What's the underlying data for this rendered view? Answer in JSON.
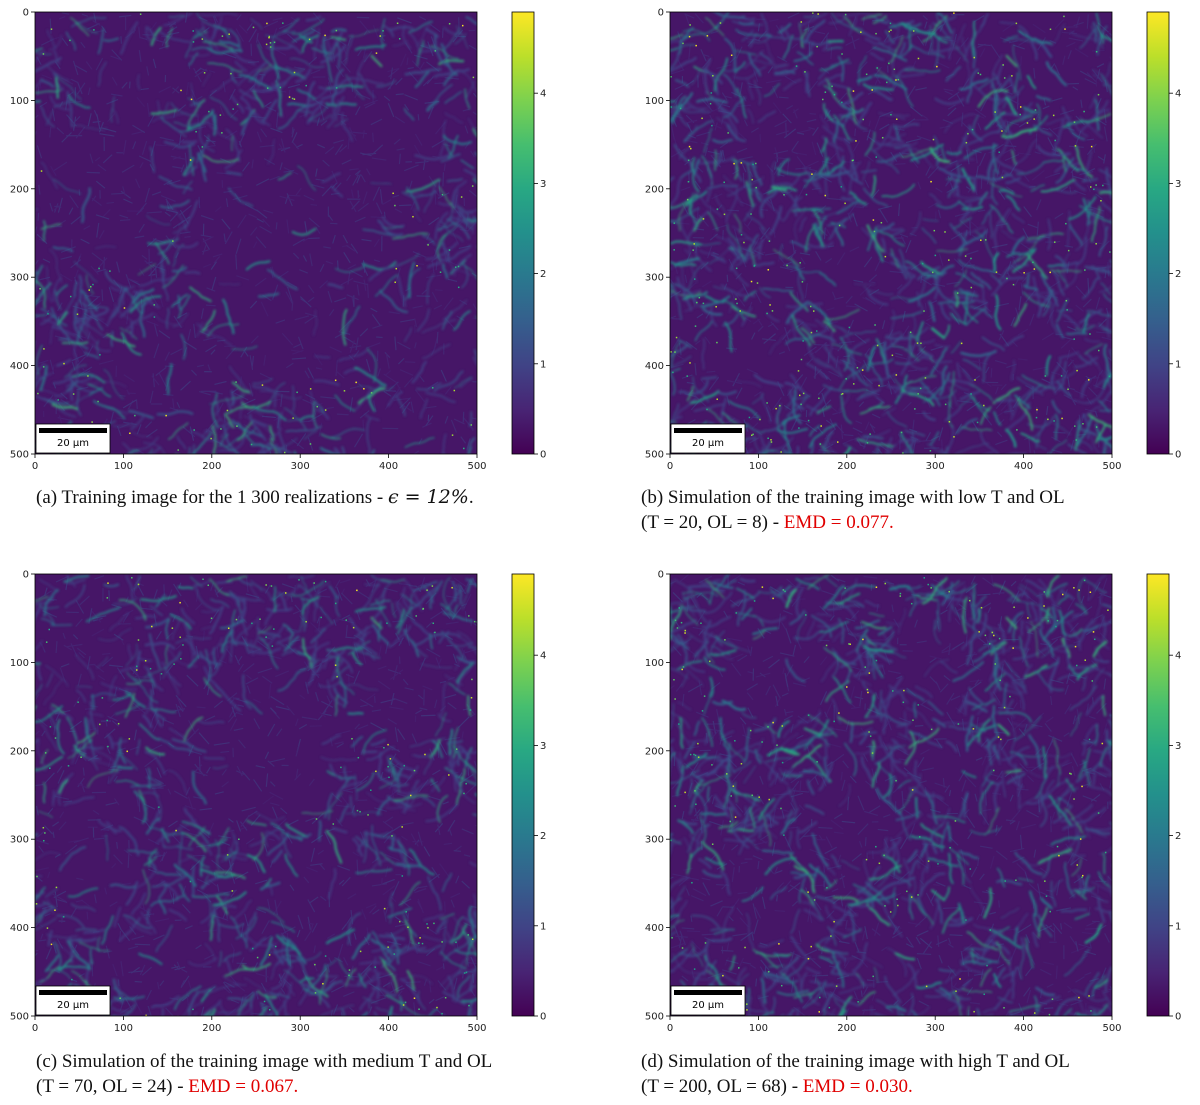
{
  "chart_data": [
    {
      "type": "heatmap",
      "id": "a",
      "x_ticks": [
        0,
        100,
        200,
        300,
        400,
        500
      ],
      "y_ticks": [
        0,
        100,
        200,
        300,
        400,
        500
      ],
      "xlim": [
        0,
        500
      ],
      "ylim": [
        500,
        0
      ],
      "colorbar": {
        "min": 0,
        "max": 4.9,
        "ticks": [
          0,
          1,
          2,
          3,
          4
        ],
        "colormap": "viridis"
      },
      "scalebar_label": "20 µm",
      "pattern": "large-central-cell",
      "seed": 11,
      "caption": {
        "prefix": "(a) Training image for the 1 300 realizations - ",
        "math": "ϵ = 12%",
        "suffix": ".",
        "line2": "",
        "emd": ""
      }
    },
    {
      "type": "heatmap",
      "id": "b",
      "x_ticks": [
        0,
        100,
        200,
        300,
        400,
        500
      ],
      "y_ticks": [
        0,
        100,
        200,
        300,
        400,
        500
      ],
      "xlim": [
        0,
        500
      ],
      "ylim": [
        500,
        0
      ],
      "colorbar": {
        "min": 0,
        "max": 4.9,
        "ticks": [
          0,
          1,
          2,
          3,
          4
        ],
        "colormap": "viridis"
      },
      "scalebar_label": "20 µm",
      "pattern": "fine-scattered",
      "seed": 23,
      "caption": {
        "prefix": "(b) Simulation of the training image with low T and OL",
        "math": "",
        "suffix": "",
        "line2": "(T = 20, OL = 8) - ",
        "emd": "EMD = 0.077."
      }
    },
    {
      "type": "heatmap",
      "id": "c",
      "x_ticks": [
        0,
        100,
        200,
        300,
        400,
        500
      ],
      "y_ticks": [
        0,
        100,
        200,
        300,
        400,
        500
      ],
      "xlim": [
        0,
        500
      ],
      "ylim": [
        500,
        0
      ],
      "colorbar": {
        "min": 0,
        "max": 4.9,
        "ticks": [
          0,
          1,
          2,
          3,
          4
        ],
        "colormap": "viridis"
      },
      "scalebar_label": "20 µm",
      "pattern": "medium-cells",
      "seed": 37,
      "caption": {
        "prefix": "(c) Simulation of the training image with medium T and OL",
        "math": "",
        "suffix": "",
        "line2": "(T = 70, OL = 24) - ",
        "emd": "EMD = 0.067."
      }
    },
    {
      "type": "heatmap",
      "id": "d",
      "x_ticks": [
        0,
        100,
        200,
        300,
        400,
        500
      ],
      "y_ticks": [
        0,
        100,
        200,
        300,
        400,
        500
      ],
      "xlim": [
        0,
        500
      ],
      "ylim": [
        500,
        0
      ],
      "colorbar": {
        "min": 0,
        "max": 4.9,
        "ticks": [
          0,
          1,
          2,
          3,
          4
        ],
        "colormap": "viridis"
      },
      "scalebar_label": "20 µm",
      "pattern": "many-cells",
      "seed": 53,
      "caption": {
        "prefix": "(d) Simulation of the training image with high T and OL",
        "math": "",
        "suffix": "",
        "line2": "(T = 200, OL = 68) - ",
        "emd": "EMD = 0.030."
      }
    }
  ]
}
